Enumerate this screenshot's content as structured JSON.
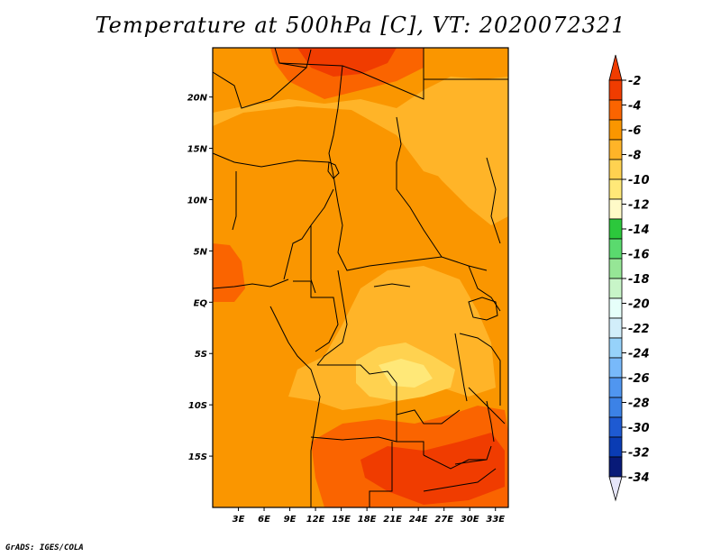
{
  "title": "Temperature at 500hPa [C], VT: 2020072321",
  "credit": "GrADS: IGES/COLA",
  "lat_ticks": [
    {
      "label": "20N",
      "lat": 20
    },
    {
      "label": "15N",
      "lat": 15
    },
    {
      "label": "10N",
      "lat": 10
    },
    {
      "label": "5N",
      "lat": 5
    },
    {
      "label": "EQ",
      "lat": 0
    },
    {
      "label": "5S",
      "lat": -5
    },
    {
      "label": "10S",
      "lat": -10
    },
    {
      "label": "15S",
      "lat": -15
    }
  ],
  "lon_ticks": [
    {
      "label": "3E",
      "lon": 3
    },
    {
      "label": "6E",
      "lon": 6
    },
    {
      "label": "9E",
      "lon": 9
    },
    {
      "label": "12E",
      "lon": 12
    },
    {
      "label": "15E",
      "lon": 15
    },
    {
      "label": "18E",
      "lon": 18
    },
    {
      "label": "21E",
      "lon": 21
    },
    {
      "label": "24E",
      "lon": 24
    },
    {
      "label": "27E",
      "lon": 27
    },
    {
      "label": "30E",
      "lon": 30
    },
    {
      "label": "33E",
      "lon": 33
    }
  ],
  "map_extent": {
    "lon_min": 0,
    "lon_max": 34.5,
    "lat_min": -20,
    "lat_max": 24.8
  },
  "colorbar": {
    "labels": [
      "-2",
      "-4",
      "-6",
      "-8",
      "-10",
      "-12",
      "-14",
      "-16",
      "-18",
      "-20",
      "-22",
      "-24",
      "-26",
      "-28",
      "-30",
      "-32",
      "-34"
    ],
    "colors": [
      "#f03c00",
      "#fa6400",
      "#fa9600",
      "#ffb428",
      "#ffd250",
      "#ffe878",
      "#fffac8",
      "#2cc83c",
      "#5ada6e",
      "#96e696",
      "#c8f5c8",
      "#e6fffa",
      "#d2eefa",
      "#96d2fa",
      "#78b9fa",
      "#5096f0",
      "#3c82e6",
      "#1e5ad2",
      "#0a3cb4",
      "#081a78"
    ],
    "top_color": "#f03c00",
    "bottom_color": "#e6e6fa"
  },
  "field_colors": {
    "base": "#fa9600",
    "warm": "#fa6400",
    "hot": "#f03c00",
    "cool": "#ffb428",
    "cooler": "#ffd250",
    "coolest": "#ffe878"
  }
}
